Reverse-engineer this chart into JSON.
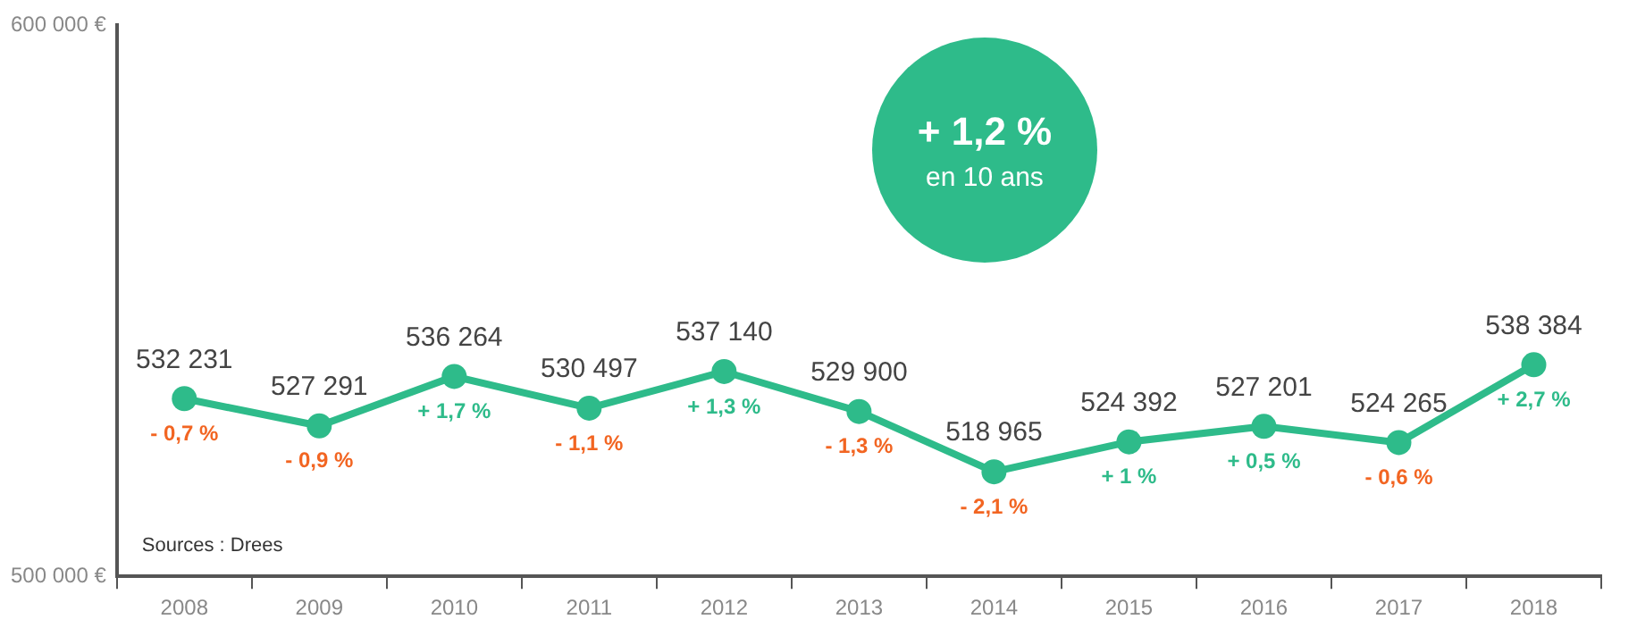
{
  "chart_data": {
    "type": "line",
    "categories": [
      "2008",
      "2009",
      "2010",
      "2011",
      "2012",
      "2013",
      "2014",
      "2015",
      "2016",
      "2017",
      "2018"
    ],
    "series": [
      {
        "color": "#2ebb8a",
        "values": [
          532231,
          527291,
          536264,
          530497,
          537140,
          529900,
          518965,
          524392,
          527201,
          524265,
          538384
        ]
      }
    ],
    "ylim": [
      500000,
      600000
    ],
    "yticks": [
      {
        "value": 500000,
        "label": "500 000 €"
      },
      {
        "value": 600000,
        "label": "600 000 €"
      }
    ],
    "grid": false,
    "legend": false,
    "marker": "circle",
    "line_style": "solid",
    "data_labels": true,
    "annotations": [
      "+ 1,2 %",
      "en 10 ans",
      "Sources : Drees",
      {
        "text": "- 0,7 %",
        "x": "2008",
        "y": 532231
      },
      {
        "text": "- 0,9 %",
        "x": "2009",
        "y": 527291
      },
      {
        "text": "+ 1,7 %",
        "x": "2010",
        "y": 536264
      },
      {
        "text": "- 1,1 %",
        "x": "2011",
        "y": 530497
      },
      {
        "text": "+ 1,3 %",
        "x": "2012",
        "y": 537140
      },
      {
        "text": "- 1,3 %",
        "x": "2013",
        "y": 529900
      },
      {
        "text": "- 2,1 %",
        "x": "2014",
        "y": 518965
      },
      {
        "text": "+ 1 %",
        "x": "2015",
        "y": 524392
      },
      {
        "text": "+ 0,5 %",
        "x": "2016",
        "y": 527201
      },
      {
        "text": "- 0,6 %",
        "x": "2017",
        "y": 524265
      },
      {
        "text": "+ 2,7 %",
        "x": "2018",
        "y": 538384
      }
    ]
  }
}
